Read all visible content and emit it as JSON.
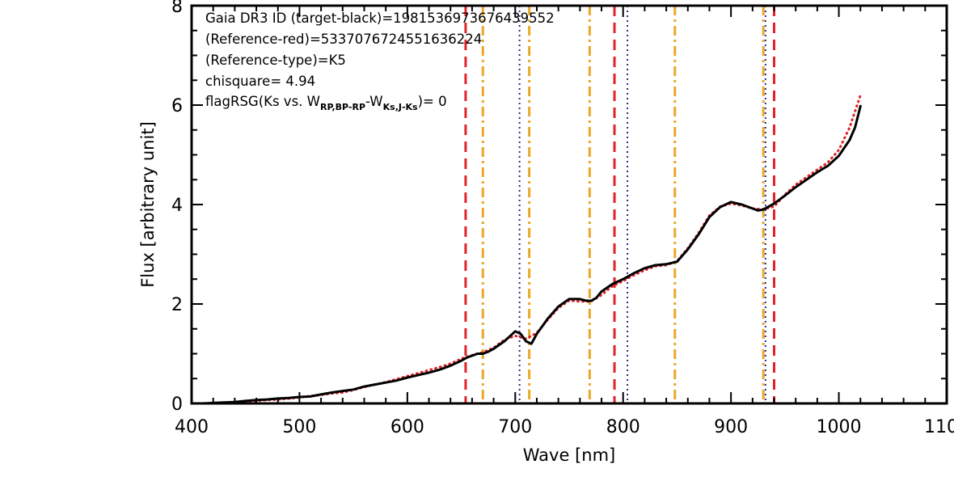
{
  "chart_data": {
    "type": "line",
    "xlabel": "Wave [nm]",
    "ylabel": "Flux [arbitrary unit]",
    "xlim": [
      400,
      1100
    ],
    "ylim": [
      0,
      8
    ],
    "xticks": [
      400,
      500,
      600,
      700,
      800,
      900,
      1000,
      1100
    ],
    "xtick_labels": [
      "400",
      "500",
      "600",
      "700",
      "800",
      "900",
      "1000",
      "1100"
    ],
    "yticks": [
      0,
      2,
      4,
      6,
      8
    ],
    "ytick_labels": [
      "0",
      "2",
      "4",
      "6",
      "8"
    ],
    "grid": false,
    "annotations": {
      "line1": "Gaia DR3 ID (target-black)=1981536973676439552",
      "line2": "(Reference-red)=5337076724551636224",
      "line3": "(Reference-type)=K5",
      "line4": "chisquare= 4.94",
      "line5_prefix": "flagRSG(Ks vs. W",
      "line5_sub1": "RP,BP-RP",
      "line5_mid": "-W",
      "line5_sub2": "Ks,J-Ks",
      "line5_suffix": ")= 0"
    },
    "vertical_lines": [
      {
        "x": 654,
        "style": "red-dashed",
        "color": "#e0242b"
      },
      {
        "x": 670,
        "style": "orange-dashdot",
        "color": "#eaa728"
      },
      {
        "x": 704,
        "style": "navy-dotted",
        "color": "#2a2a90"
      },
      {
        "x": 713,
        "style": "orange-dashdot",
        "color": "#eaa728"
      },
      {
        "x": 769,
        "style": "orange-dashdot",
        "color": "#eaa728"
      },
      {
        "x": 792,
        "style": "red-dashed",
        "color": "#e0242b"
      },
      {
        "x": 804,
        "style": "navy-dotted",
        "color": "#2a2a90"
      },
      {
        "x": 848,
        "style": "orange-dashdot",
        "color": "#eaa728"
      },
      {
        "x": 930,
        "style": "orange-dashdot",
        "color": "#eaa728"
      },
      {
        "x": 932,
        "style": "navy-dotted",
        "color": "#2a2a90"
      },
      {
        "x": 940,
        "style": "red-dashed",
        "color": "#e0242b"
      }
    ],
    "series": [
      {
        "role": "target-black",
        "color": "#000000",
        "style": "solid",
        "x": [
          400,
          410,
          420,
          430,
          440,
          450,
          460,
          470,
          480,
          490,
          500,
          510,
          520,
          530,
          540,
          550,
          560,
          570,
          580,
          590,
          600,
          610,
          620,
          630,
          640,
          650,
          655,
          660,
          665,
          670,
          675,
          680,
          690,
          700,
          705,
          710,
          715,
          720,
          725,
          730,
          740,
          750,
          760,
          765,
          770,
          775,
          780,
          790,
          800,
          810,
          820,
          830,
          840,
          850,
          860,
          870,
          880,
          890,
          900,
          910,
          920,
          925,
          930,
          935,
          940,
          950,
          960,
          970,
          980,
          990,
          1000,
          1010,
          1015,
          1020
        ],
        "y": [
          0.0,
          0.0,
          0.01,
          0.02,
          0.03,
          0.05,
          0.07,
          0.08,
          0.1,
          0.11,
          0.13,
          0.14,
          0.18,
          0.22,
          0.25,
          0.28,
          0.34,
          0.38,
          0.42,
          0.46,
          0.52,
          0.57,
          0.62,
          0.68,
          0.76,
          0.86,
          0.92,
          0.96,
          1.0,
          1.0,
          1.04,
          1.1,
          1.25,
          1.45,
          1.4,
          1.25,
          1.2,
          1.4,
          1.55,
          1.7,
          1.95,
          2.1,
          2.1,
          2.07,
          2.06,
          2.12,
          2.25,
          2.4,
          2.5,
          2.62,
          2.72,
          2.78,
          2.8,
          2.85,
          3.1,
          3.4,
          3.75,
          3.95,
          4.05,
          4.0,
          3.92,
          3.88,
          3.9,
          3.96,
          4.02,
          4.18,
          4.35,
          4.5,
          4.65,
          4.78,
          4.98,
          5.3,
          5.55,
          5.98
        ]
      },
      {
        "role": "reference-red",
        "color": "#e0242b",
        "style": "dotted",
        "x": [
          400,
          410,
          420,
          430,
          440,
          450,
          460,
          470,
          480,
          490,
          500,
          510,
          520,
          530,
          540,
          550,
          560,
          570,
          580,
          590,
          600,
          610,
          620,
          630,
          640,
          650,
          660,
          670,
          680,
          690,
          700,
          710,
          720,
          730,
          740,
          750,
          760,
          770,
          780,
          790,
          800,
          810,
          820,
          830,
          840,
          850,
          860,
          870,
          880,
          890,
          900,
          910,
          920,
          930,
          940,
          950,
          960,
          970,
          980,
          990,
          1000,
          1010,
          1020
        ],
        "y": [
          0.0,
          0.0,
          0.0,
          0.01,
          0.02,
          0.03,
          0.05,
          0.07,
          0.08,
          0.1,
          0.12,
          0.15,
          0.17,
          0.2,
          0.22,
          0.27,
          0.33,
          0.38,
          0.43,
          0.49,
          0.55,
          0.61,
          0.67,
          0.73,
          0.8,
          0.9,
          0.97,
          1.03,
          1.12,
          1.28,
          1.36,
          1.3,
          1.42,
          1.68,
          1.92,
          2.07,
          2.05,
          2.05,
          2.18,
          2.36,
          2.46,
          2.58,
          2.68,
          2.76,
          2.78,
          2.86,
          3.12,
          3.43,
          3.78,
          3.96,
          4.02,
          3.98,
          3.92,
          3.9,
          3.96,
          4.2,
          4.4,
          4.55,
          4.7,
          4.85,
          5.1,
          5.55,
          6.2
        ]
      }
    ]
  }
}
